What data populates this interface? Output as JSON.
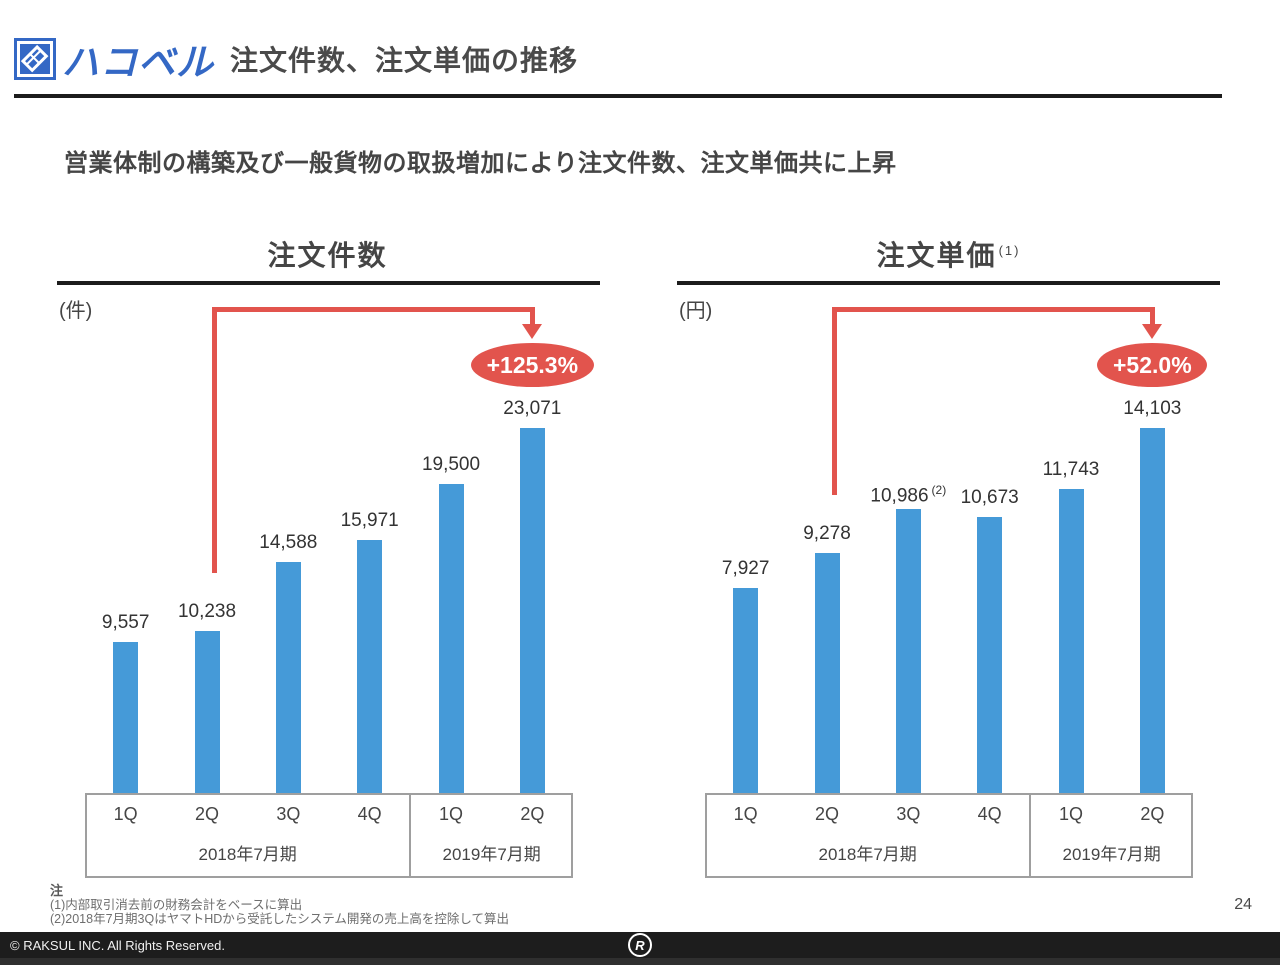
{
  "header": {
    "logo_text": "ハコベル",
    "title": "注文件数、注文単価の推移"
  },
  "subtitle": "営業体制の構築及び一般貨物の取扱増加により注文件数、注文単価共に上昇",
  "colors": {
    "bar_blue": "#459ad8",
    "accent_red": "#e2544d",
    "logo_blue": "#3468c5"
  },
  "chart_data": [
    {
      "type": "bar",
      "title": "注文件数",
      "title_sup": "",
      "unit": "(件)",
      "categories": [
        "1Q",
        "2Q",
        "3Q",
        "4Q",
        "1Q",
        "2Q"
      ],
      "category_groups": [
        {
          "label": "2018年7月期",
          "span": 4
        },
        {
          "label": "2019年7月期",
          "span": 2
        }
      ],
      "values": [
        9557,
        10238,
        14588,
        15971,
        19500,
        23071
      ],
      "value_labels": [
        "9,557",
        "10,238",
        "14,588",
        "15,971",
        "19,500",
        "23,071"
      ],
      "value_sups": [
        "",
        "",
        "",
        "",
        "",
        ""
      ],
      "growth": {
        "label": "+125.3%",
        "from_index": 1,
        "to_index": 5
      },
      "ylim": [
        0,
        23071
      ],
      "grid": false,
      "legend": false
    },
    {
      "type": "bar",
      "title": "注文単価",
      "title_sup": "(1)",
      "unit": "(円)",
      "categories": [
        "1Q",
        "2Q",
        "3Q",
        "4Q",
        "1Q",
        "2Q"
      ],
      "category_groups": [
        {
          "label": "2018年7月期",
          "span": 4
        },
        {
          "label": "2019年7月期",
          "span": 2
        }
      ],
      "values": [
        7927,
        9278,
        10986,
        10673,
        11743,
        14103
      ],
      "value_labels": [
        "7,927",
        "9,278",
        "10,986",
        "10,673",
        "11,743",
        "14,103"
      ],
      "value_sups": [
        "",
        "",
        "(2)",
        "",
        "",
        ""
      ],
      "growth": {
        "label": "+52.0%",
        "from_index": 1,
        "to_index": 5
      },
      "ylim": [
        0,
        14103
      ],
      "grid": false,
      "legend": false
    }
  ],
  "footnotes": {
    "heading": "注",
    "items": [
      "(1)内部取引消去前の財務会計をベースに算出",
      "(2)2018年7月期3QはヤマトHDから受託したシステム開発の売上高を控除して算出"
    ]
  },
  "footer": {
    "copyright": "© RAKSUL INC. All Rights Reserved.",
    "page_number": "24",
    "logo_letter": "R"
  }
}
